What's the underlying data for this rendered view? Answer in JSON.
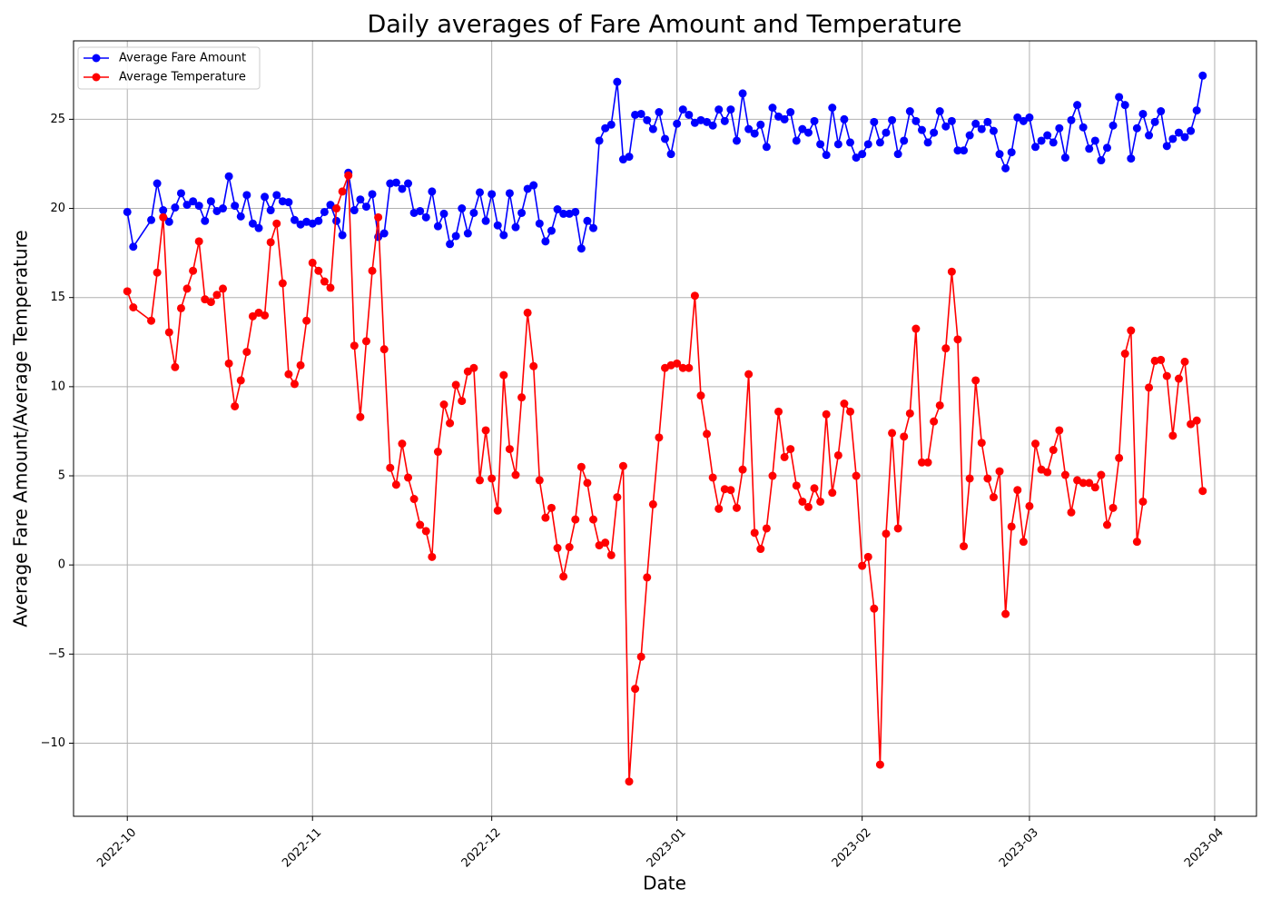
{
  "chart_data": {
    "type": "line",
    "title": "Daily averages of Fare Amount and Temperature",
    "x_label": "Date",
    "y_label": "Average Fare Amount/Average Temperature",
    "x": [
      "2022-10-01",
      "2022-10-02",
      "2022-10-05",
      "2022-10-06",
      "2022-10-07",
      "2022-10-08",
      "2022-10-09",
      "2022-10-10",
      "2022-10-11",
      "2022-10-12",
      "2022-10-13",
      "2022-10-14",
      "2022-10-15",
      "2022-10-16",
      "2022-10-17",
      "2022-10-18",
      "2022-10-19",
      "2022-10-20",
      "2022-10-21",
      "2022-10-22",
      "2022-10-23",
      "2022-10-24",
      "2022-10-25",
      "2022-10-26",
      "2022-10-27",
      "2022-10-28",
      "2022-10-29",
      "2022-10-30",
      "2022-10-31",
      "2022-11-01",
      "2022-11-02",
      "2022-11-03",
      "2022-11-04",
      "2022-11-05",
      "2022-11-06",
      "2022-11-07",
      "2022-11-08",
      "2022-11-09",
      "2022-11-10",
      "2022-11-11",
      "2022-11-12",
      "2022-11-13",
      "2022-11-14",
      "2022-11-15",
      "2022-11-16",
      "2022-11-17",
      "2022-11-18",
      "2022-11-19",
      "2022-11-20",
      "2022-11-21",
      "2022-11-22",
      "2022-11-23",
      "2022-11-24",
      "2022-11-25",
      "2022-11-26",
      "2022-11-27",
      "2022-11-28",
      "2022-11-29",
      "2022-11-30",
      "2022-12-01",
      "2022-12-02",
      "2022-12-03",
      "2022-12-04",
      "2022-12-05",
      "2022-12-06",
      "2022-12-07",
      "2022-12-08",
      "2022-12-09",
      "2022-12-10",
      "2022-12-11",
      "2022-12-12",
      "2022-12-13",
      "2022-12-14",
      "2022-12-15",
      "2022-12-16",
      "2022-12-17",
      "2022-12-18",
      "2022-12-19",
      "2022-12-20",
      "2022-12-21",
      "2022-12-22",
      "2022-12-23",
      "2022-12-24",
      "2022-12-25",
      "2022-12-26",
      "2022-12-27",
      "2022-12-28",
      "2022-12-29",
      "2022-12-30",
      "2022-12-31",
      "2023-01-01",
      "2023-01-02",
      "2023-01-03",
      "2023-01-04",
      "2023-01-05",
      "2023-01-06",
      "2023-01-07",
      "2023-01-08",
      "2023-01-09",
      "2023-01-10",
      "2023-01-11",
      "2023-01-12",
      "2023-01-13",
      "2023-01-14",
      "2023-01-15",
      "2023-01-16",
      "2023-01-17",
      "2023-01-18",
      "2023-01-19",
      "2023-01-20",
      "2023-01-21",
      "2023-01-22",
      "2023-01-23",
      "2023-01-24",
      "2023-01-25",
      "2023-01-26",
      "2023-01-27",
      "2023-01-28",
      "2023-01-29",
      "2023-01-30",
      "2023-01-31",
      "2023-02-01",
      "2023-02-02",
      "2023-02-03",
      "2023-02-04",
      "2023-02-05",
      "2023-02-06",
      "2023-02-07",
      "2023-02-08",
      "2023-02-09",
      "2023-02-10",
      "2023-02-11",
      "2023-02-12",
      "2023-02-13",
      "2023-02-14",
      "2023-02-15",
      "2023-02-16",
      "2023-02-17",
      "2023-02-18",
      "2023-02-19",
      "2023-02-20",
      "2023-02-21",
      "2023-02-22",
      "2023-02-23",
      "2023-02-24",
      "2023-02-25",
      "2023-02-26",
      "2023-02-27",
      "2023-02-28",
      "2023-03-01",
      "2023-03-02",
      "2023-03-03",
      "2023-03-04",
      "2023-03-05",
      "2023-03-06",
      "2023-03-07",
      "2023-03-08",
      "2023-03-09",
      "2023-03-10",
      "2023-03-11",
      "2023-03-12",
      "2023-03-13",
      "2023-03-14",
      "2023-03-15",
      "2023-03-16",
      "2023-03-17",
      "2023-03-18",
      "2023-03-19",
      "2023-03-20",
      "2023-03-21",
      "2023-03-22",
      "2023-03-23",
      "2023-03-24",
      "2023-03-25",
      "2023-03-26",
      "2023-03-27",
      "2023-03-28",
      "2023-03-29",
      "2023-03-30"
    ],
    "series": [
      {
        "name": "Average Fare Amount",
        "color": "#0000ff",
        "values": [
          19.8,
          17.85,
          19.35,
          21.4,
          19.9,
          19.25,
          20.05,
          20.85,
          20.2,
          20.4,
          20.15,
          19.3,
          20.4,
          19.85,
          20.0,
          21.8,
          20.15,
          19.55,
          20.75,
          19.15,
          18.9,
          20.65,
          19.9,
          20.75,
          20.4,
          20.35,
          19.35,
          19.1,
          19.25,
          19.15,
          19.3,
          19.8,
          20.2,
          19.3,
          18.5,
          22.0,
          19.9,
          20.5,
          20.1,
          20.8,
          18.4,
          18.6,
          21.4,
          21.45,
          21.1,
          21.4,
          19.75,
          19.85,
          19.5,
          20.95,
          19.0,
          19.7,
          18.0,
          18.45,
          20.0,
          18.6,
          19.75,
          20.9,
          19.3,
          20.8,
          19.05,
          18.5,
          20.85,
          18.95,
          19.75,
          21.1,
          21.3,
          19.15,
          18.15,
          18.75,
          19.95,
          19.7,
          19.7,
          19.8,
          17.75,
          19.3,
          18.9,
          23.8,
          24.5,
          24.7,
          27.1,
          22.75,
          22.9,
          25.25,
          25.3,
          24.95,
          24.45,
          25.4,
          23.9,
          23.05,
          24.75,
          25.55,
          25.25,
          24.8,
          24.95,
          24.85,
          24.65,
          25.55,
          24.9,
          25.55,
          23.8,
          26.45,
          24.45,
          24.2,
          24.7,
          23.45,
          25.65,
          25.15,
          25.0,
          25.4,
          23.8,
          24.45,
          24.25,
          24.9,
          23.6,
          23.0,
          25.65,
          23.6,
          25.0,
          23.7,
          22.85,
          23.05,
          23.6,
          24.85,
          23.7,
          24.25,
          24.95,
          23.05,
          23.8,
          25.45,
          24.9,
          24.4,
          23.7,
          24.25,
          25.45,
          24.6,
          24.9,
          23.25,
          23.25,
          24.1,
          24.75,
          24.45,
          24.85,
          24.35,
          23.05,
          22.25,
          23.15,
          25.1,
          24.9,
          25.1,
          23.45,
          23.8,
          24.1,
          23.7,
          24.5,
          22.85,
          24.95,
          25.8,
          24.55,
          23.35,
          23.8,
          22.7,
          23.4,
          24.65,
          26.25,
          25.8,
          22.8,
          24.5,
          25.3,
          24.1,
          24.85,
          25.45,
          23.5,
          23.9,
          24.25,
          24.0,
          24.35,
          25.5,
          27.45
        ]
      },
      {
        "name": "Average Temperature",
        "color": "#ff0000",
        "values": [
          15.35,
          14.45,
          13.7,
          16.4,
          19.5,
          13.05,
          11.1,
          14.4,
          15.5,
          16.5,
          18.15,
          14.9,
          14.75,
          15.15,
          15.5,
          11.3,
          8.9,
          10.35,
          11.95,
          13.95,
          14.15,
          14.0,
          18.1,
          19.15,
          15.8,
          10.7,
          10.15,
          11.2,
          13.7,
          16.95,
          16.5,
          15.9,
          15.55,
          20.0,
          20.95,
          21.85,
          12.3,
          8.3,
          12.55,
          16.5,
          19.5,
          12.1,
          5.45,
          4.5,
          6.8,
          4.9,
          3.7,
          2.25,
          1.9,
          0.45,
          6.35,
          9.0,
          7.95,
          10.1,
          9.2,
          10.85,
          11.05,
          4.75,
          7.55,
          4.85,
          3.05,
          10.65,
          6.5,
          5.05,
          9.4,
          14.15,
          11.15,
          4.75,
          2.65,
          3.2,
          0.95,
          -0.65,
          1.0,
          2.55,
          5.5,
          4.6,
          2.55,
          1.1,
          1.25,
          0.55,
          3.8,
          5.55,
          -12.15,
          -6.95,
          -5.15,
          -0.7,
          3.4,
          7.15,
          11.05,
          11.2,
          11.3,
          11.05,
          11.05,
          15.1,
          9.5,
          7.35,
          4.9,
          3.15,
          4.25,
          4.2,
          3.2,
          5.35,
          10.7,
          1.8,
          0.9,
          2.05,
          5.0,
          8.6,
          6.05,
          6.5,
          4.45,
          3.55,
          3.25,
          4.3,
          3.55,
          8.45,
          4.05,
          6.15,
          9.05,
          8.6,
          5.0,
          -0.05,
          0.45,
          -2.45,
          -11.2,
          1.75,
          7.4,
          2.05,
          7.2,
          8.5,
          13.25,
          5.75,
          5.75,
          8.05,
          8.95,
          12.15,
          16.45,
          12.65,
          1.05,
          4.85,
          10.35,
          6.85,
          4.85,
          3.8,
          5.25,
          -2.75,
          2.15,
          4.2,
          1.3,
          3.3,
          6.8,
          5.35,
          5.2,
          6.45,
          7.55,
          5.05,
          2.95,
          4.75,
          4.6,
          4.6,
          4.35,
          5.05,
          2.25,
          3.2,
          6.0,
          11.85,
          13.15,
          1.3,
          3.55,
          9.95,
          11.45,
          11.5,
          10.6,
          7.25,
          10.45,
          11.4,
          7.9,
          8.1,
          4.15
        ]
      }
    ],
    "xlim": [
      "2022-09-22",
      "2023-04-08"
    ],
    "xticks": [
      "2022-10",
      "2022-11",
      "2022-12",
      "2023-01",
      "2023-02",
      "2023-03",
      "2023-04"
    ],
    "ylim": [
      -14.1,
      29.4
    ],
    "yticks": [
      {
        "value": -10,
        "label": "−10"
      },
      {
        "value": -5,
        "label": "−5"
      },
      0,
      5,
      10,
      15,
      20,
      25
    ],
    "grid": true,
    "legend": "upper left",
    "marker": "o"
  }
}
